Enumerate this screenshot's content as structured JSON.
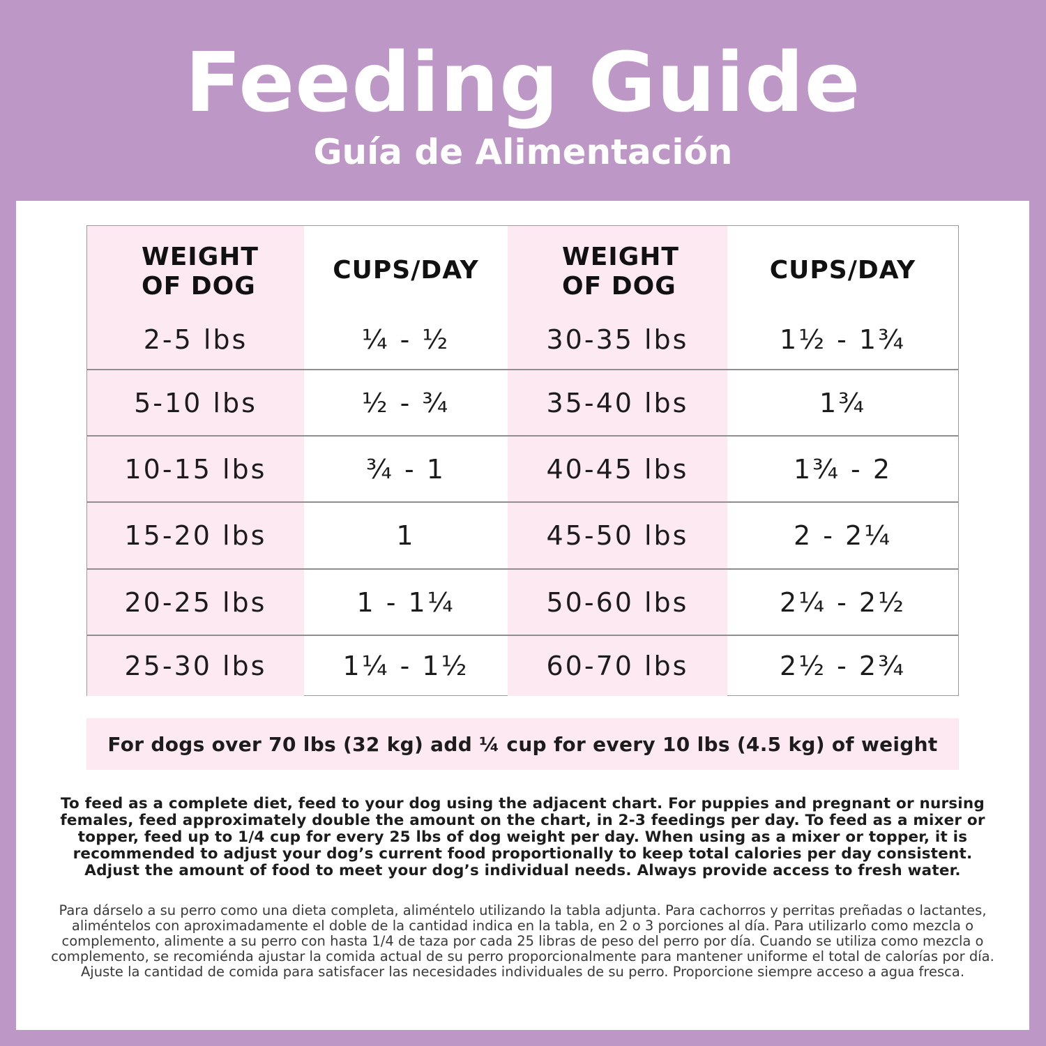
{
  "header": {
    "title": "Feeding Guide",
    "subtitle": "Guía de Alimentación"
  },
  "table": {
    "headers": [
      "WEIGHT\nOF DOG",
      "CUPS/DAY",
      "WEIGHT\nOF DOG",
      "CUPS/DAY"
    ],
    "header_weight_line1": "WEIGHT",
    "header_weight_line2": "OF DOG",
    "header_cups": "CUPS/DAY",
    "rows": [
      [
        "2-5 lbs",
        "¼ - ½",
        "30-35 lbs",
        "1½ - 1¾"
      ],
      [
        "5-10 lbs",
        "½ - ¾",
        "35-40 lbs",
        "1¾"
      ],
      [
        "10-15 lbs",
        "¾ - 1",
        "40-45 lbs",
        "1¾ - 2"
      ],
      [
        "15-20 lbs",
        "1",
        "45-50 lbs",
        "2 - 2¼"
      ],
      [
        "20-25 lbs",
        "1 - 1¼",
        "50-60 lbs",
        "2¼ - 2½"
      ],
      [
        "25-30 lbs",
        "1¼ - 1½",
        "60-70 lbs",
        "2½ - 2¾"
      ]
    ]
  },
  "note": "For dogs over 70 lbs (32 kg) add ¼ cup for every 10 lbs (4.5 kg) of weight",
  "instructions_en": "To feed as a complete diet, feed to your dog using the adjacent chart. For puppies and pregnant or nursing females, feed approximately double the amount on the chart, in 2-3 feedings per day. To feed as a mixer or topper, feed up to 1/4 cup for every 25 lbs of dog weight per day. When using as a mixer or topper, it is recommended to adjust your dog’s current food proportionally to keep total calories per day consistent. Adjust the amount of food to meet your dog’s individual needs. Always provide access to fresh water.",
  "instructions_es": "Para dárselo a su perro como una dieta completa, aliméntelo utilizando la tabla adjunta. Para cachorros y perritas preñadas o lactantes, aliméntelos con aproximadamente el doble de la cantidad indica en la tabla, en 2 o 3 porciones al día. Para utilizarlo como mezcla o complemento, alimente a su perro con hasta 1/4 de taza por cada 25 libras de peso del perro por día. Cuando se utiliza como mezcla o complemento, se recomiénda ajustar la comida actual de su perro proporcionalmente para mantener uniforme el total de calorías por día. Ajuste la cantidad de comida para satisfacer las necesidades individuales de su perro. Proporcione siempre acceso a agua fresca.",
  "colors": {
    "background": "#bd97c5",
    "panel": "#ffffff",
    "pink_column": "#fce9f1",
    "text": "#1c1c1c"
  }
}
